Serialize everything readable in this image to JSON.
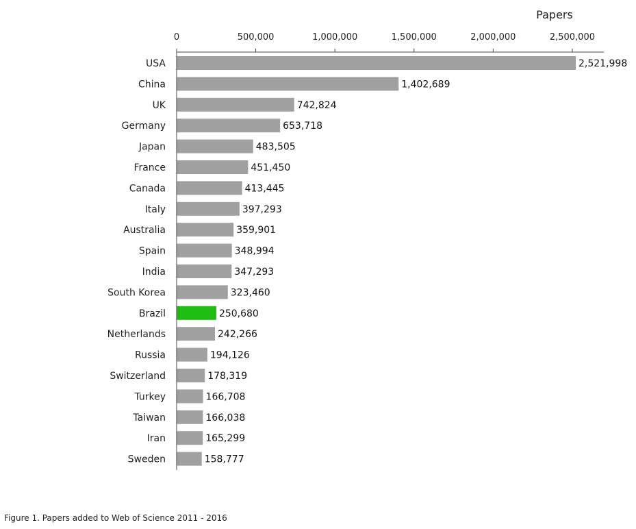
{
  "chart_data": {
    "type": "bar",
    "orientation": "horizontal",
    "xlabel": "Papers",
    "xlim": [
      0,
      2600000
    ],
    "xticks": [
      0,
      500000,
      1000000,
      1500000,
      2000000,
      2500000
    ],
    "xtick_labels": [
      "0",
      "500,000",
      "1,000,000",
      "1,500,000",
      "2,000,000",
      "2,500,000"
    ],
    "axis_position": "top",
    "grid": false,
    "legend": "none",
    "categories": [
      "USA",
      "China",
      "UK",
      "Germany",
      "Japan",
      "France",
      "Canada",
      "Italy",
      "Australia",
      "Spain",
      "India",
      "South Korea",
      "Brazil",
      "Netherlands",
      "Russia",
      "Switzerland",
      "Turkey",
      "Taiwan",
      "Iran",
      "Sweden"
    ],
    "values": [
      2521998,
      1402689,
      742824,
      653718,
      483505,
      451450,
      413445,
      397293,
      359901,
      348994,
      347293,
      323460,
      250680,
      242266,
      194126,
      178319,
      166708,
      166038,
      165299,
      158777
    ],
    "value_labels": [
      "2,521,998",
      "1,402,689",
      "742,824",
      "653,718",
      "483,505",
      "451,450",
      "413,445",
      "397,293",
      "359,901",
      "348,994",
      "347,293",
      "323,460",
      "250,680",
      "242,266",
      "194,126",
      "178,319",
      "166,708",
      "166,038",
      "165,299",
      "158,777"
    ],
    "bar_color": "#a0a0a1",
    "highlight_category": "Brazil",
    "highlight_color": "#1fbc12"
  },
  "caption": "Figure 1. Papers added to Web of Science 2011 - 2016"
}
